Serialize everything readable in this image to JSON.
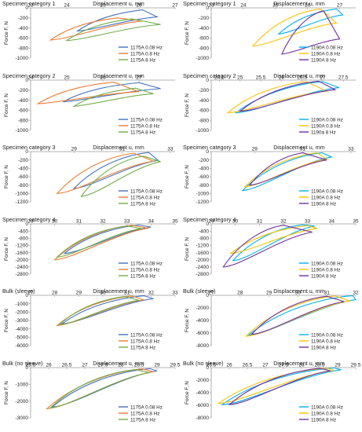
{
  "colors": {
    "blue": "#4472c4",
    "orange": "#ed7d31",
    "green": "#70ad47",
    "cyan": "#00b0f0",
    "yellow": "#ffc000",
    "purple": "#7030a0",
    "axis": "#9a9a9a",
    "text": "#222222"
  },
  "legend_placement": "bottom-right",
  "chart_data": [
    {
      "type": "line",
      "category": "Specimen category 1",
      "title": "Displacement u, mm",
      "ylabel": "Force F, N",
      "xticks": [
        23,
        24,
        25,
        26,
        27
      ],
      "yticks": [
        0,
        -200,
        -400,
        -600,
        -800,
        -1000
      ],
      "xlim": [
        23,
        27
      ],
      "ylim": [
        -1000,
        0
      ],
      "legend": [
        "1175A 0.08 Hz",
        "1175A 0.8 Hz",
        "1175A 8 Hz"
      ],
      "series": [
        {
          "name": "1175A 0.08 Hz",
          "loop": [
            [
              24.3,
              -460
            ],
            [
              26.1,
              -40
            ],
            [
              26.5,
              -180
            ]
          ]
        },
        {
          "name": "1175A 0.8 Hz",
          "loop": [
            [
              23.55,
              -640
            ],
            [
              25.4,
              -200
            ],
            [
              26.1,
              -260
            ]
          ]
        },
        {
          "name": "1175A 8 Hz",
          "loop": [
            [
              24.0,
              -650
            ],
            [
              25.8,
              -220
            ],
            [
              26.6,
              -330
            ]
          ]
        }
      ]
    },
    {
      "type": "line",
      "category": "Specimen category 1",
      "title": "Displacement u, mm",
      "ylabel": "Force F, N",
      "xticks": [
        23,
        24,
        25,
        26,
        27
      ],
      "yticks": [
        0,
        -200,
        -400,
        -600,
        -800,
        -1000
      ],
      "xlim": [
        23,
        27.5
      ],
      "ylim": [
        -1000,
        0
      ],
      "legend": [
        "1190A 0.08 Hz",
        "1190A 0.8 Hz",
        "1190A 8 Hz"
      ],
      "series": [
        {
          "name": "1190A 0.08 Hz",
          "loop": [
            [
              25.1,
              -520
            ],
            [
              26.9,
              -20
            ],
            [
              27.1,
              -140
            ]
          ]
        },
        {
          "name": "1190A 0.8 Hz",
          "loop": [
            [
              24.3,
              -760
            ],
            [
              26.4,
              -20
            ],
            [
              26.9,
              -300
            ]
          ]
        },
        {
          "name": "1190A 8 Hz",
          "loop": [
            [
              25.2,
              -920
            ],
            [
              26.5,
              -60
            ],
            [
              27.0,
              -620
            ]
          ]
        }
      ]
    },
    {
      "type": "line",
      "category": "Specimen category 2",
      "title": "Displacement u, mm",
      "ylabel": "Force F, N",
      "xticks": [
        24,
        25,
        26,
        27
      ],
      "yticks": [
        0,
        -200,
        -400,
        -600,
        -800,
        -1000
      ],
      "xlim": [
        24,
        28
      ],
      "ylim": [
        -1000,
        0
      ],
      "legend": [
        "1175A 0.08 Hz",
        "1175A 0.8 Hz",
        "1175A 8 Hz"
      ],
      "series": [
        {
          "name": "1175A 0.08 Hz",
          "loop": [
            [
              24.9,
              -430
            ],
            [
              27.0,
              -50
            ],
            [
              27.6,
              -170
            ]
          ]
        },
        {
          "name": "1175A 0.8 Hz",
          "loop": [
            [
              24.2,
              -470
            ],
            [
              26.3,
              -40
            ],
            [
              27.0,
              -230
            ]
          ]
        },
        {
          "name": "1175A 8 Hz",
          "loop": [
            [
              25.2,
              -520
            ],
            [
              26.9,
              -160
            ],
            [
              27.4,
              -270
            ]
          ]
        }
      ]
    },
    {
      "type": "line",
      "category": "Specimen category 2",
      "title": "Displacement u, mm",
      "ylabel": "Force F, N",
      "xticks": [
        24.5,
        25,
        25.5,
        26,
        26.5,
        27,
        27.5
      ],
      "yticks": [
        0,
        -200,
        -400,
        -600,
        -800,
        -1000
      ],
      "xlim": [
        24.3,
        27.8
      ],
      "ylim": [
        -1000,
        0
      ],
      "legend": [
        "1190A 0.08 Hz",
        "1190A 0.8 Hz",
        "1190a 8 Hz"
      ],
      "series": [
        {
          "name": "1190A 0.08 Hz",
          "loop": [
            [
              24.9,
              -650
            ],
            [
              27.0,
              -30
            ],
            [
              27.4,
              -150
            ]
          ]
        },
        {
          "name": "1190A 0.8 Hz",
          "loop": [
            [
              24.7,
              -650
            ],
            [
              26.6,
              -30
            ],
            [
              27.1,
              -220
            ]
          ]
        },
        {
          "name": "1190a 8 Hz",
          "loop": [
            [
              25.0,
              -620
            ],
            [
              26.9,
              -20
            ],
            [
              27.3,
              -190
            ]
          ]
        }
      ]
    },
    {
      "type": "line",
      "category": "Specimen category 3",
      "title": "Displacement u, mm",
      "ylabel": "Force F, N",
      "xticks": [
        29,
        31,
        33
      ],
      "yticks": [
        0,
        -200,
        -400,
        -600,
        -800,
        -1000,
        -1200
      ],
      "xlim": [
        27.2,
        33.2
      ],
      "ylim": [
        -1200,
        0
      ],
      "legend": [
        "1175A 0.08 Hz",
        "1175A 0.8 Hz",
        "1175A 8 Hz"
      ],
      "series": [
        {
          "name": "1175A 0.08 Hz",
          "loop": [
            [
              29.0,
              -880
            ],
            [
              32.1,
              -20
            ],
            [
              32.5,
              -210
            ]
          ]
        },
        {
          "name": "1175A 0.8 Hz",
          "loop": [
            [
              28.3,
              -1000
            ],
            [
              31.5,
              -40
            ],
            [
              32.3,
              -230
            ]
          ]
        },
        {
          "name": "1175A 8 Hz",
          "loop": [
            [
              29.3,
              -1070
            ],
            [
              31.9,
              -110
            ],
            [
              32.6,
              -240
            ]
          ]
        }
      ]
    },
    {
      "type": "line",
      "category": "Specimen category 3",
      "title": "Displacement u, mm",
      "ylabel": "Force F, N",
      "xticks": [
        29,
        31,
        33
      ],
      "yticks": [
        0,
        -200,
        -400,
        -600,
        -800,
        -1000,
        -1200
      ],
      "xlim": [
        27.2,
        33.2
      ],
      "ylim": [
        -1200,
        0
      ],
      "legend": [
        "1190A 0.08 Hz",
        "1190A 0.8 Hz",
        "1190A 8 Hz"
      ],
      "series": [
        {
          "name": "1190A 0.08 Hz",
          "loop": [
            [
              28.5,
              -930
            ],
            [
              31.8,
              -30
            ],
            [
              32.2,
              -130
            ]
          ]
        },
        {
          "name": "1190A 0.8 Hz",
          "loop": [
            [
              28.6,
              -840
            ],
            [
              31.6,
              -30
            ],
            [
              32.0,
              -180
            ]
          ]
        },
        {
          "name": "1190A 8 Hz",
          "loop": [
            [
              28.8,
              -800
            ],
            [
              31.0,
              -30
            ],
            [
              32.0,
              -200
            ]
          ]
        }
      ]
    },
    {
      "type": "line",
      "category": "Specimen category 4",
      "title": "",
      "ylabel": "Force F, N",
      "xticks": [
        29,
        30,
        31,
        32,
        33,
        34,
        35
      ],
      "yticks": [
        0,
        -400,
        -800,
        -1200,
        -1600,
        -2000,
        -2400,
        -2800
      ],
      "xlim": [
        29,
        35
      ],
      "ylim": [
        -2800,
        0
      ],
      "legend": [
        "1175A 0.08 Hz",
        "1175A 0.8 Hz",
        "1175A 8 Hz"
      ],
      "series": [
        {
          "name": "1175A 0.08 Hz",
          "loop": [
            [
              30.4,
              -1650
            ],
            [
              33.5,
              -60
            ],
            [
              34.0,
              -180
            ]
          ]
        },
        {
          "name": "1175A 0.8 Hz",
          "loop": [
            [
              30.0,
              -2000
            ],
            [
              33.2,
              -80
            ],
            [
              33.9,
              -240
            ]
          ]
        },
        {
          "name": "1175A 8 Hz",
          "loop": [
            [
              30.1,
              -1850
            ],
            [
              33.0,
              -120
            ],
            [
              33.6,
              -260
            ]
          ]
        }
      ]
    },
    {
      "type": "line",
      "category": "Specimen category 4",
      "title": "",
      "ylabel": "Force F, N",
      "xticks": [
        29,
        30,
        31,
        32,
        33,
        34,
        35
      ],
      "yticks": [
        0,
        -400,
        -800,
        -1200,
        -1600,
        -2000,
        -2400,
        -2800
      ],
      "xlim": [
        29,
        35
      ],
      "ylim": [
        -2800,
        0
      ],
      "legend": [
        "1190A 0.08 Hz",
        "1190A 0.8 Hz",
        "1190A 8 Hz"
      ],
      "series": [
        {
          "name": "1190A 0.08 Hz",
          "loop": [
            [
              29.9,
              -2050
            ],
            [
              32.8,
              -50
            ],
            [
              33.3,
              -120
            ]
          ]
        },
        {
          "name": "1190A 0.8 Hz",
          "loop": [
            [
              29.8,
              -1650
            ],
            [
              33.0,
              -100
            ],
            [
              33.4,
              -260
            ]
          ]
        },
        {
          "name": "1190A 8 Hz",
          "loop": [
            [
              29.5,
              -2400
            ],
            [
              32.0,
              -80
            ],
            [
              33.2,
              -460
            ]
          ]
        }
      ]
    },
    {
      "type": "line",
      "category": "Bulk (sleeve)",
      "title": "Displacement u, mm",
      "ylabel": "Force F, N",
      "xticks": [
        27,
        28,
        29,
        30,
        31,
        32,
        33
      ],
      "yticks": [
        0,
        -1000,
        -2000,
        -3000,
        -4000,
        -5000,
        -6000
      ],
      "xlim": [
        27,
        33
      ],
      "ylim": [
        -6000,
        0
      ],
      "legend": [
        "1175A 0.08 Hz",
        "1175A 0.8 Hz",
        "1175A 8 Hz"
      ],
      "series": [
        {
          "name": "1175A 0.08 Hz",
          "loop": [
            [
              28.3,
              -3400
            ],
            [
              31.7,
              -50
            ],
            [
              32.1,
              -400
            ]
          ]
        },
        {
          "name": "1175A 0.8 Hz",
          "loop": [
            [
              28.1,
              -3600
            ],
            [
              31.2,
              -80
            ],
            [
              31.7,
              -550
            ]
          ]
        },
        {
          "name": "1175A 8 Hz",
          "loop": [
            [
              28.2,
              -3500
            ],
            [
              30.9,
              -150
            ],
            [
              31.5,
              -600
            ]
          ]
        }
      ]
    },
    {
      "type": "line",
      "category": "Bulk (sleeve)",
      "title": "Displacement u, mm",
      "ylabel": "Force F, N",
      "xticks": [
        27,
        28,
        29,
        30,
        31,
        32
      ],
      "yticks": [
        0,
        -2000,
        -4000,
        -6000,
        -8000
      ],
      "xlim": [
        27,
        32
      ],
      "ylim": [
        -8000,
        0
      ],
      "legend": [
        "1190A 0.08 Hz",
        "1190A 0.8 Hz",
        "1190A 8 Hz"
      ],
      "series": [
        {
          "name": "1190A 0.08 Hz",
          "loop": [
            [
              28.3,
              -6300
            ],
            [
              31.9,
              -50
            ],
            [
              32.0,
              -700
            ]
          ]
        },
        {
          "name": "1190A 0.8 Hz",
          "loop": [
            [
              28.2,
              -6500
            ],
            [
              31.3,
              -100
            ],
            [
              31.8,
              -900
            ]
          ]
        },
        {
          "name": "1190A 8 Hz",
          "loop": [
            [
              28.4,
              -6200
            ],
            [
              31.0,
              -150
            ],
            [
              31.6,
              -1000
            ]
          ]
        }
      ]
    },
    {
      "type": "line",
      "category": "Bulk (no sleeve)",
      "title": "Displacement u, mm",
      "ylabel": "Force F, N",
      "xticks": [
        25.5,
        26,
        26.5,
        27,
        27.5,
        28,
        28.5,
        29,
        29.5
      ],
      "yticks": [
        0,
        -1000,
        -2000,
        -3000
      ],
      "xlim": [
        25.5,
        29.5
      ],
      "ylim": [
        -3000,
        0
      ],
      "legend": [
        "1175A 0.08 Hz",
        "1175A 0.8 Hz",
        "1175A 8 Hz"
      ],
      "series": [
        {
          "name": "1175A 0.08 Hz",
          "loop": [
            [
              26.1,
              -2350
            ],
            [
              28.8,
              -60
            ],
            [
              29.0,
              -200
            ]
          ]
        },
        {
          "name": "1175A 0.8 Hz",
          "loop": [
            [
              25.95,
              -2450
            ],
            [
              28.6,
              -80
            ],
            [
              28.9,
              -250
            ]
          ]
        },
        {
          "name": "1175A 8 Hz",
          "loop": [
            [
              26.05,
              -2400
            ],
            [
              28.4,
              -120
            ],
            [
              28.8,
              -300
            ]
          ]
        }
      ]
    },
    {
      "type": "line",
      "category": "Bulk (no sleeve)",
      "title": "Displacement u, mm",
      "ylabel": "Force F, N",
      "xticks": [
        25.5,
        26,
        26.5,
        27,
        27.5,
        28,
        28.5,
        29,
        29.5
      ],
      "yticks": [
        0,
        -2000,
        -4000,
        -6000,
        -8000
      ],
      "xlim": [
        25.5,
        29.5
      ],
      "ylim": [
        -8000,
        0
      ],
      "legend": [
        "1190A 0.08 Hz",
        "1190A 0.8 Hz",
        "1190A 8 Hz"
      ],
      "series": [
        {
          "name": "1190A 0.08 Hz",
          "loop": [
            [
              25.8,
              -5900
            ],
            [
              28.9,
              -50
            ],
            [
              29.1,
              -350
            ]
          ]
        },
        {
          "name": "1190A 0.8 Hz",
          "loop": [
            [
              25.7,
              -5700
            ],
            [
              28.7,
              -80
            ],
            [
              28.9,
              -450
            ]
          ]
        },
        {
          "name": "1190A 8 Hz",
          "loop": [
            [
              26.0,
              -5900
            ],
            [
              28.5,
              -120
            ],
            [
              28.8,
              -500
            ]
          ]
        }
      ]
    }
  ]
}
